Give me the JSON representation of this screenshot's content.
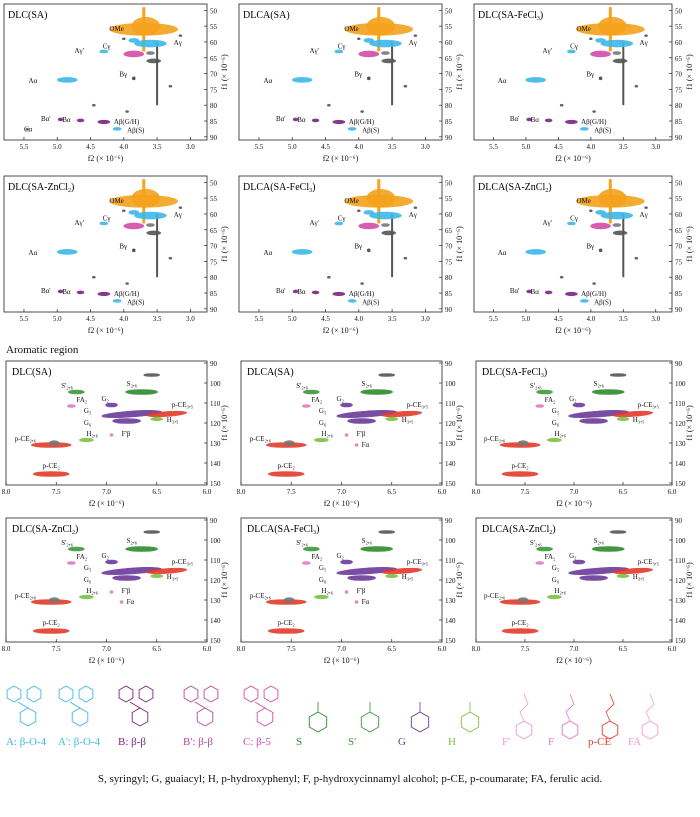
{
  "colors": {
    "A": "#3db8e8",
    "Aprime": "#3db8e8",
    "B": "#7a2480",
    "Bprime": "#b04ba0",
    "C": "#d24ca8",
    "S": "#2e8b2e",
    "Sprime": "#3a9a3a",
    "G": "#6a3a9a",
    "H": "#7cc242",
    "Fprime": "#e89ad0",
    "F": "#e07ac0",
    "pCE": "#e33a2a",
    "FA": "#f0a0c8",
    "OMe": "#f5a21c",
    "gray": "#666666"
  },
  "aliphatic_panels": [
    {
      "title_main": "DLC(SA)",
      "title_sub": ""
    },
    {
      "title_main": "DLCA(SA)",
      "title_sub": ""
    },
    {
      "title_main": "DLC(SA-FeCl",
      "title_sub": "3",
      "title_end": ")"
    },
    {
      "title_main": "DLC(SA-ZnCl",
      "title_sub": "2",
      "title_end": ")"
    },
    {
      "title_main": "DLCA(SA-FeCl",
      "title_sub": "3",
      "title_end": ")"
    },
    {
      "title_main": "DLCA(SA-ZnCl",
      "title_sub": "2",
      "title_end": ")"
    }
  ],
  "aliphatic_axis": {
    "x_ticks": [
      "5.5",
      "5.0",
      "4.5",
      "4.0",
      "3.5",
      "3.0"
    ],
    "y_ticks": [
      "50",
      "55",
      "60",
      "65",
      "70",
      "75",
      "80",
      "85",
      "90"
    ],
    "xlabel": "f2 (× 10⁻⁶)",
    "ylabel": "f1 (× 10⁻⁶)"
  },
  "aliphatic_labels": {
    "OMe": "OMe",
    "Agamma": "Aγ",
    "Agammap": "Aγ'",
    "C": "Cγ",
    "Bgamma": "Bγ",
    "Aalpha": "Aα",
    "Balphap": "Bα'",
    "Balpha": "Bα",
    "AbetaGH": "Aβ(G/H)",
    "AbetaS": "Aβ(S)",
    "Calpha": "Cα"
  },
  "aromatic_title": "Aromatic region",
  "aromatic_panels": [
    {
      "title_main": "DLC(SA)",
      "title_sub": ""
    },
    {
      "title_main": "DLCA(SA)",
      "title_sub": ""
    },
    {
      "title_main": "DLC(SA-FeCl",
      "title_sub": "3",
      "title_end": ")"
    },
    {
      "title_main": "DLC(SA-ZnCl",
      "title_sub": "2",
      "title_end": ")"
    },
    {
      "title_main": "DLCA(SA-FeCl",
      "title_sub": "3",
      "title_end": ")"
    },
    {
      "title_main": "DLCA(SA-ZnCl",
      "title_sub": "2",
      "title_end": ")"
    }
  ],
  "aromatic_axis": {
    "x_ticks": [
      "8.0",
      "7.5",
      "7.0",
      "6.5",
      "6.0"
    ],
    "y_ticks": [
      "90",
      "100",
      "110",
      "120",
      "130",
      "140",
      "150"
    ],
    "xlabel": "f2 (× 10⁻⁶)",
    "ylabel": "f1 (× 10⁻⁶)"
  },
  "aromatic_labels": {
    "Sp": "S'₂,₆",
    "S26": "S₂,₆",
    "FA2": "FA₂",
    "G2": "G₂",
    "G5": "G₅",
    "G6": "G₆",
    "pCE35": "p-CE₃,₅",
    "H35": "H₃,₅",
    "pCE26": "p-CE₂,₆",
    "H26": "H₂,₆",
    "Fprimebeta": "F'β",
    "Falpha": "Fα",
    "pCEb": "p-CE₂"
  },
  "legend": [
    {
      "key": "A",
      "label": "A: β-O-4"
    },
    {
      "key": "Aprime",
      "label": "A': β-O-4"
    },
    {
      "key": "B",
      "label": "B: β-β"
    },
    {
      "key": "Bprime",
      "label": "B': β-β"
    },
    {
      "key": "C",
      "label": "C: β-5"
    },
    {
      "key": "S",
      "label": "S"
    },
    {
      "key": "Sprime",
      "label": "S'"
    },
    {
      "key": "G",
      "label": "G"
    },
    {
      "key": "H",
      "label": "H"
    },
    {
      "key": "Fprime",
      "label": "F'"
    },
    {
      "key": "F",
      "label": "F"
    },
    {
      "key": "pCE",
      "label": "p-CE"
    },
    {
      "key": "FA",
      "label": "FA"
    }
  ],
  "caption": "S, syringyl; G, guaiacyl; H, p-hydroxyphenyl; F, p-hydroxycinnamyl alcohol; p-CE, p-coumarate; FA, ferulic acid."
}
